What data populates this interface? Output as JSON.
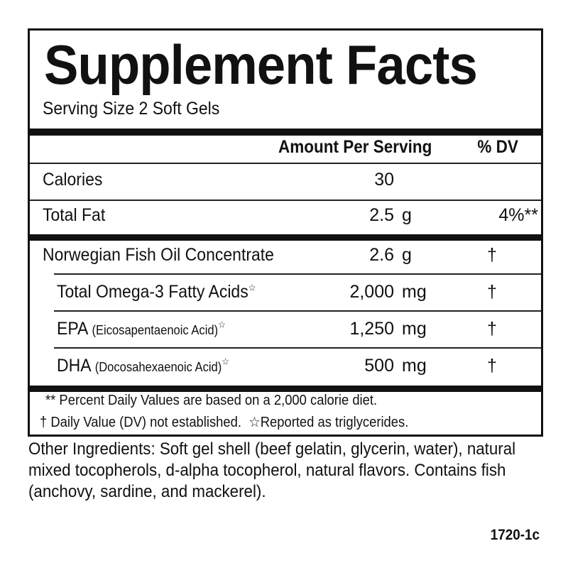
{
  "title": "Supplement Facts",
  "serving_size": "Serving Size 2 Soft Gels",
  "header": {
    "amount": "Amount Per Serving",
    "dv": "% DV"
  },
  "rows": [
    {
      "name": "Calories",
      "amount": "30",
      "unit": "",
      "dv": ""
    },
    {
      "name": "Total Fat",
      "amount": "2.5",
      "unit": "g",
      "dv": "4%**"
    },
    {
      "name": "Norwegian Fish Oil Concentrate",
      "amount": "2.6",
      "unit": "g",
      "dv": "†"
    },
    {
      "name": "Total Omega-3 Fatty Acids",
      "note": "",
      "mark": "☆",
      "amount": "2,000",
      "unit": "mg",
      "dv": "†"
    },
    {
      "name": "EPA",
      "note": "(Eicosapentaenoic Acid)",
      "mark": "☆",
      "amount": "1,250",
      "unit": "mg",
      "dv": "†"
    },
    {
      "name": "DHA",
      "note": "(Docosahexaenoic Acid)",
      "mark": "☆",
      "amount": "500",
      "unit": "mg",
      "dv": "†"
    }
  ],
  "footnotes": [
    "** Percent Daily Values are based on a 2,000 calorie diet.",
    "† Daily Value (DV) not established.",
    "☆Reported as triglycerides."
  ],
  "other_ingredients": "Other Ingredients: Soft gel shell (beef gelatin, glycerin, water), natural mixed tocopherols, d-alpha tocopherol, natural flavors. Contains fish (anchovy, sardine, and mackerel).",
  "code": "1720-1c"
}
